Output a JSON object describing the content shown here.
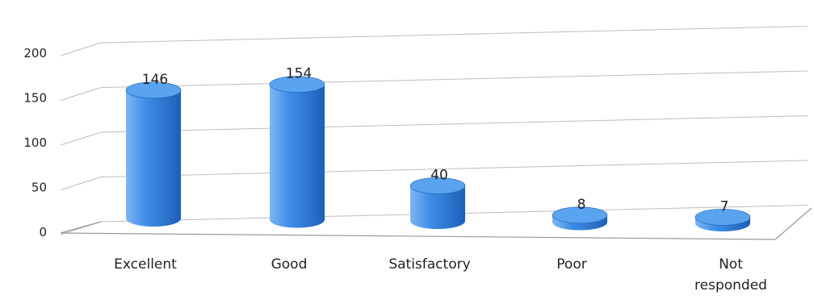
{
  "chart_data": {
    "type": "bar",
    "style": "3d-cylinder",
    "categories": [
      "Excellent",
      "Good",
      "Satisfactory",
      "Poor",
      "Not responded"
    ],
    "category_label_lines": [
      [
        "Excellent"
      ],
      [
        "Good"
      ],
      [
        "Satisfactory"
      ],
      [
        "Poor"
      ],
      [
        "Not",
        "responded"
      ]
    ],
    "values": [
      146,
      154,
      40,
      8,
      7
    ],
    "data_labels": [
      "146",
      "154",
      "40",
      "8",
      "7"
    ],
    "ylim": [
      0,
      200
    ],
    "yticks": [
      0,
      50,
      100,
      150,
      200
    ],
    "grid": true,
    "legend": "none",
    "colors": {
      "bar": "#3f8ee8",
      "bar_dark": "#1e5fb8",
      "bar_light": "#7fb6f2",
      "bar_top": "#5aa3ef",
      "grid": "#bdbdbd",
      "text": "#222222"
    }
  }
}
